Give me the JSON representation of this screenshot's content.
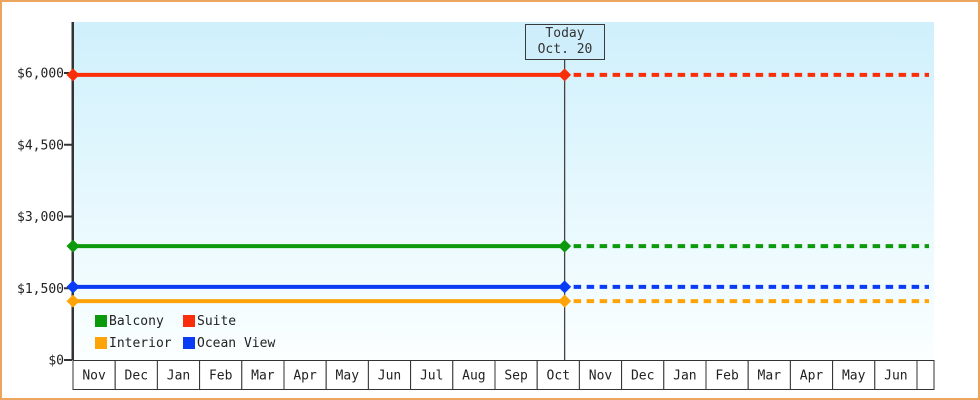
{
  "chart_data": {
    "type": "line",
    "title": "",
    "description": "Cabin price lines: solid history up to today, dotted projection after today",
    "x_categories": [
      "Nov",
      "Dec",
      "Jan",
      "Feb",
      "Mar",
      "Apr",
      "May",
      "Jun",
      "Jul",
      "Aug",
      "Sep",
      "Oct",
      "Nov",
      "Dec",
      "Jan",
      "Feb",
      "Mar",
      "Apr",
      "May",
      "Jun"
    ],
    "ylim": [
      0,
      6000
    ],
    "y_ticks": [
      {
        "value": 0,
        "label": "$0"
      },
      {
        "value": 1500,
        "label": "$1,500"
      },
      {
        "value": 3000,
        "label": "$3,000"
      },
      {
        "value": 4500,
        "label": "$4,500"
      },
      {
        "value": 6000,
        "label": "$6,000"
      }
    ],
    "series": [
      {
        "name": "Suite",
        "color": "#fa2e08",
        "value": 5960
      },
      {
        "name": "Balcony",
        "color": "#0c990c",
        "value": 2380
      },
      {
        "name": "Ocean View",
        "color": "#0a3cf5",
        "value": 1530
      },
      {
        "name": "Interior",
        "color": "#ffa408",
        "value": 1230
      }
    ],
    "legend": [
      {
        "label": "Balcony",
        "color": "#0c990c"
      },
      {
        "label": "Suite",
        "color": "#fa2e08"
      },
      {
        "label": "Interior",
        "color": "#ffa408"
      },
      {
        "label": "Ocean View",
        "color": "#0a3cf5"
      }
    ],
    "today": {
      "title": "Today",
      "date": "Oct. 20",
      "month_index": 11,
      "month_fraction": 0.65
    },
    "legend_position": "bottom-left",
    "grid": false,
    "colors": {
      "axis": "#333333",
      "text": "#222222",
      "plot_bg_top": "#cff0fc",
      "plot_bg_bottom": "#fbffff",
      "frame_border": "#eba55f",
      "month_cell_bg": "#ffffff",
      "today_line": "#444444"
    }
  }
}
